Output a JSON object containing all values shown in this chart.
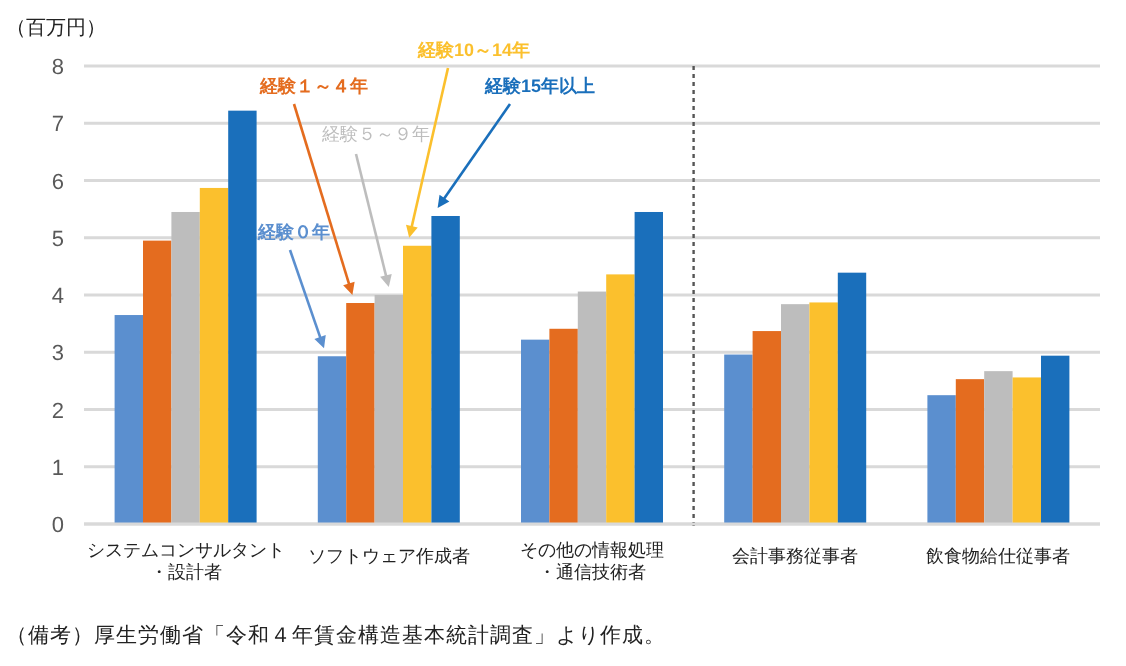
{
  "chart_data": {
    "type": "bar",
    "ylabel": "（百万円）",
    "categories": [
      "システムコンサルタント・設計者",
      "ソフトウェア作成者",
      "その他の情報処理・通信技術者",
      "会計事務従事者",
      "飲食物給仕従事者"
    ],
    "series": [
      {
        "name": "経験０年",
        "color": "#5b8fcf",
        "values": [
          3.65,
          2.93,
          3.22,
          2.96,
          2.25
        ]
      },
      {
        "name": "経験１～４年",
        "color": "#e46c1f",
        "values": [
          4.95,
          3.86,
          3.41,
          3.37,
          2.53
        ]
      },
      {
        "name": "経験５～９年",
        "color": "#bdbdbd",
        "values": [
          5.45,
          4.0,
          4.06,
          3.84,
          2.67
        ]
      },
      {
        "name": "経験10～14年",
        "color": "#fbc02d",
        "values": [
          5.87,
          4.86,
          4.36,
          3.87,
          2.56
        ]
      },
      {
        "name": "経験15年以上",
        "color": "#1a6fbb",
        "values": [
          7.22,
          5.38,
          5.45,
          4.39,
          2.94
        ]
      }
    ],
    "ylim": [
      0,
      8
    ],
    "yticks": [
      0,
      1,
      2,
      3,
      4,
      5,
      6,
      7,
      8
    ],
    "grid": "y",
    "legend": false,
    "annotations": [
      "（備考）厚生労働省「令和４年賃金構造基本統計調査」より作成。"
    ]
  }
}
